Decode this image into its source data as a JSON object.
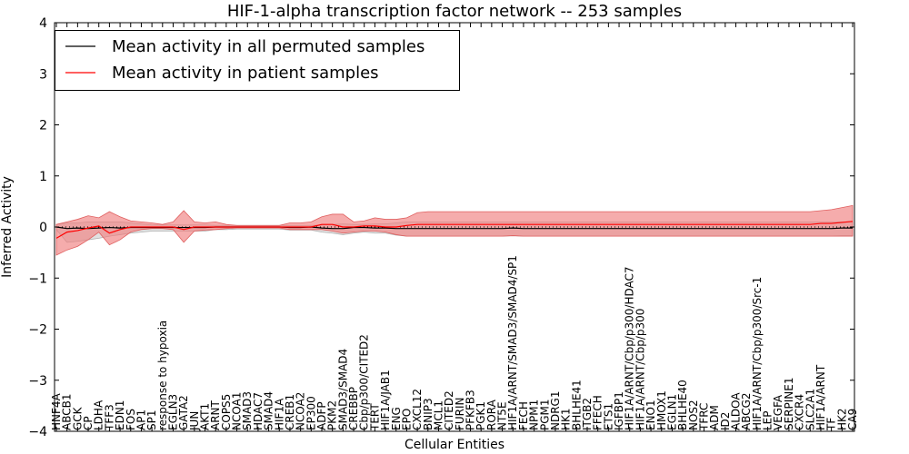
{
  "chart_data": {
    "type": "line",
    "title": "HIF-1-alpha transcription factor network -- 253 samples",
    "xlabel": "Cellular Entities",
    "ylabel": "Inferred Activity",
    "ylim": [
      -4,
      4
    ],
    "yticks": [
      "4",
      "3",
      "2",
      "1",
      "0",
      "−1",
      "−2",
      "−3",
      "−4"
    ],
    "ytick_values": [
      4,
      3,
      2,
      1,
      0,
      -1,
      -2,
      -3,
      -4
    ],
    "legend_position": "top-left",
    "colors": {
      "permuted": "#000000",
      "patient": "#ff0000",
      "patient_band": "#f08080",
      "permuted_band": "#c8c8c8"
    },
    "categories": [
      "HNF4A",
      "ABCB1",
      "GCK",
      "CP",
      "LDHA",
      "TFF3",
      "EDN1",
      "FOS",
      "AP1",
      "SP1",
      "response to hypoxia",
      "EGLN3",
      "GATA2",
      "JUN",
      "AKT1",
      "ARNT",
      "COPS5",
      "NCOA1",
      "SMAD3",
      "HDAC7",
      "SMAD4",
      "HIF1A",
      "CREB1",
      "NCOA2",
      "EP300",
      "ADFP",
      "PKM2",
      "SMAD3/SMAD4",
      "CREBBP",
      "Cbp/p300/CITED2",
      "TERT",
      "HIF1A/JAB1",
      "ENG",
      "EPO",
      "CXCL12",
      "BNIP3",
      "MCL1",
      "CITED2",
      "FURIN",
      "PFKFB3",
      "PGK1",
      "RORA",
      "NT5E",
      "HIF1A/ARNT/SMAD3/SMAD4/SP1",
      "FECH",
      "NPM1",
      "PGM1",
      "NDRG1",
      "HK1",
      "BHLHE41",
      "ITGB2",
      "FFECH",
      "ETS1",
      "IGFBP1",
      "HIF1A/ARNT/Cbp/p300/HDAC7",
      "HIF1A/ARNT/Cbp/p300",
      "ENO1",
      "HMOX1",
      "EGLN1",
      "BHLHE40",
      "NOS2",
      "TFRC",
      "ADM",
      "ID2",
      "ALDOA",
      "ABCG2",
      "HIF1A/ARNT/Cbp/p300/Src-1",
      "LEP",
      "VEGFA",
      "SERPINE1",
      "CXCR4",
      "SLC2A1",
      "HIF1A/ARNT",
      "TF",
      "HK2",
      "CA9"
    ],
    "series": [
      {
        "name": "Mean activity in all permuted samples",
        "values": [
          0.0,
          -0.03,
          -0.02,
          -0.03,
          -0.02,
          -0.01,
          -0.02,
          -0.01,
          -0.01,
          -0.01,
          -0.01,
          -0.01,
          -0.01,
          -0.01,
          -0.01,
          0.0,
          0.0,
          0.0,
          0.0,
          0.0,
          0.0,
          0.0,
          -0.01,
          -0.01,
          0.0,
          -0.02,
          -0.03,
          -0.03,
          -0.01,
          -0.01,
          -0.02,
          -0.02,
          -0.03,
          -0.03,
          -0.03,
          -0.03,
          -0.03,
          -0.03,
          -0.03,
          -0.03,
          -0.03,
          -0.03,
          -0.03,
          -0.02,
          -0.03,
          -0.03,
          -0.03,
          -0.03,
          -0.03,
          -0.03,
          -0.03,
          -0.03,
          -0.03,
          -0.03,
          -0.03,
          -0.03,
          -0.03,
          -0.03,
          -0.03,
          -0.03,
          -0.03,
          -0.03,
          -0.03,
          -0.03,
          -0.03,
          -0.03,
          -0.03,
          -0.03,
          -0.03,
          -0.03,
          -0.03,
          -0.03,
          -0.03,
          -0.03,
          -0.02,
          -0.02
        ],
        "lower": [
          -0.05,
          -0.3,
          -0.28,
          -0.25,
          -0.22,
          -0.18,
          -0.15,
          -0.12,
          -0.1,
          -0.08,
          -0.08,
          -0.08,
          -0.08,
          -0.08,
          -0.08,
          -0.05,
          -0.05,
          -0.04,
          -0.04,
          -0.04,
          -0.04,
          -0.04,
          -0.06,
          -0.06,
          -0.06,
          -0.1,
          -0.12,
          -0.15,
          -0.12,
          -0.1,
          -0.12,
          -0.12,
          -0.16,
          -0.18,
          -0.18,
          -0.18,
          -0.18,
          -0.18,
          -0.18,
          -0.18,
          -0.18,
          -0.18,
          -0.18,
          -0.17,
          -0.18,
          -0.18,
          -0.18,
          -0.18,
          -0.18,
          -0.18,
          -0.18,
          -0.18,
          -0.18,
          -0.18,
          -0.18,
          -0.18,
          -0.18,
          -0.18,
          -0.18,
          -0.18,
          -0.18,
          -0.18,
          -0.18,
          -0.18,
          -0.18,
          -0.18,
          -0.18,
          -0.18,
          -0.18,
          -0.18,
          -0.18,
          -0.18,
          -0.18,
          -0.18,
          -0.17,
          -0.17
        ],
        "upper": [
          0.05,
          0.08,
          0.08,
          0.1,
          0.1,
          0.1,
          0.1,
          0.08,
          0.06,
          0.04,
          0.04,
          0.04,
          0.04,
          0.04,
          0.04,
          0.03,
          0.03,
          0.03,
          0.03,
          0.03,
          0.03,
          0.03,
          0.03,
          0.03,
          0.03,
          0.04,
          0.05,
          0.06,
          0.05,
          0.05,
          0.06,
          0.06,
          0.08,
          0.1,
          0.1,
          0.1,
          0.1,
          0.1,
          0.1,
          0.1,
          0.1,
          0.1,
          0.1,
          0.1,
          0.1,
          0.1,
          0.1,
          0.1,
          0.1,
          0.1,
          0.1,
          0.1,
          0.1,
          0.1,
          0.1,
          0.1,
          0.1,
          0.1,
          0.1,
          0.1,
          0.1,
          0.1,
          0.1,
          0.1,
          0.1,
          0.1,
          0.1,
          0.1,
          0.1,
          0.1,
          0.1,
          0.1,
          0.1,
          0.1,
          0.1,
          0.1
        ]
      },
      {
        "name": "Mean activity in patient samples",
        "values": [
          -0.22,
          -0.1,
          -0.07,
          -0.02,
          0.02,
          -0.12,
          -0.05,
          0.0,
          0.0,
          0.0,
          0.0,
          0.0,
          -0.05,
          0.0,
          0.0,
          0.0,
          0.0,
          0.0,
          0.0,
          0.0,
          0.0,
          0.0,
          0.0,
          0.0,
          0.0,
          0.05,
          0.05,
          0.0,
          0.0,
          0.02,
          0.02,
          0.0,
          0.0,
          0.03,
          0.05,
          0.05,
          0.05,
          0.05,
          0.05,
          0.05,
          0.05,
          0.05,
          0.05,
          0.05,
          0.05,
          0.05,
          0.05,
          0.05,
          0.05,
          0.05,
          0.05,
          0.05,
          0.05,
          0.05,
          0.05,
          0.05,
          0.05,
          0.05,
          0.05,
          0.05,
          0.05,
          0.05,
          0.05,
          0.05,
          0.05,
          0.05,
          0.05,
          0.05,
          0.05,
          0.05,
          0.05,
          0.05,
          0.07,
          0.07,
          0.09,
          0.11
        ],
        "lower": [
          -0.55,
          -0.45,
          -0.38,
          -0.25,
          -0.1,
          -0.35,
          -0.25,
          -0.1,
          -0.05,
          -0.03,
          -0.03,
          -0.05,
          -0.3,
          -0.08,
          -0.06,
          -0.05,
          -0.03,
          -0.02,
          -0.02,
          -0.02,
          -0.02,
          -0.02,
          -0.05,
          -0.05,
          -0.05,
          -0.05,
          -0.08,
          -0.12,
          -0.1,
          -0.08,
          -0.08,
          -0.1,
          -0.15,
          -0.18,
          -0.18,
          -0.18,
          -0.18,
          -0.18,
          -0.18,
          -0.18,
          -0.18,
          -0.18,
          -0.18,
          -0.17,
          -0.18,
          -0.18,
          -0.18,
          -0.18,
          -0.18,
          -0.18,
          -0.18,
          -0.18,
          -0.18,
          -0.18,
          -0.18,
          -0.18,
          -0.18,
          -0.18,
          -0.18,
          -0.18,
          -0.18,
          -0.18,
          -0.18,
          -0.18,
          -0.18,
          -0.18,
          -0.18,
          -0.18,
          -0.18,
          -0.18,
          -0.18,
          -0.18,
          -0.18,
          -0.18,
          -0.18,
          -0.18
        ],
        "upper": [
          0.05,
          0.1,
          0.15,
          0.22,
          0.18,
          0.3,
          0.2,
          0.12,
          0.1,
          0.08,
          0.05,
          0.1,
          0.32,
          0.1,
          0.08,
          0.1,
          0.05,
          0.03,
          0.03,
          0.03,
          0.03,
          0.03,
          0.08,
          0.08,
          0.1,
          0.2,
          0.25,
          0.25,
          0.1,
          0.12,
          0.18,
          0.15,
          0.15,
          0.18,
          0.28,
          0.3,
          0.3,
          0.3,
          0.3,
          0.3,
          0.3,
          0.3,
          0.3,
          0.3,
          0.3,
          0.3,
          0.3,
          0.3,
          0.3,
          0.3,
          0.3,
          0.3,
          0.3,
          0.3,
          0.3,
          0.3,
          0.3,
          0.3,
          0.3,
          0.3,
          0.3,
          0.3,
          0.3,
          0.3,
          0.3,
          0.3,
          0.3,
          0.3,
          0.3,
          0.3,
          0.3,
          0.3,
          0.32,
          0.34,
          0.38,
          0.42
        ]
      }
    ]
  }
}
